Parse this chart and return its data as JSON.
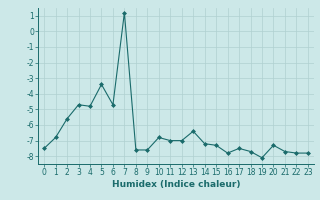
{
  "x": [
    0,
    1,
    2,
    3,
    4,
    5,
    6,
    7,
    8,
    9,
    10,
    11,
    12,
    13,
    14,
    15,
    16,
    17,
    18,
    19,
    20,
    21,
    22,
    23
  ],
  "y": [
    -7.5,
    -6.8,
    -5.6,
    -4.7,
    -4.8,
    -3.4,
    -4.7,
    1.2,
    -7.6,
    -7.6,
    -6.8,
    -7.0,
    -7.0,
    -6.4,
    -7.2,
    -7.3,
    -7.8,
    -7.5,
    -7.7,
    -8.1,
    -7.3,
    -7.7,
    -7.8,
    -7.8
  ],
  "xlabel": "Humidex (Indice chaleur)",
  "ylim": [
    -8.5,
    1.5
  ],
  "xlim": [
    -0.5,
    23.5
  ],
  "yticks": [
    1,
    0,
    -1,
    -2,
    -3,
    -4,
    -5,
    -6,
    -7,
    -8
  ],
  "xticks": [
    0,
    1,
    2,
    3,
    4,
    5,
    6,
    7,
    8,
    9,
    10,
    11,
    12,
    13,
    14,
    15,
    16,
    17,
    18,
    19,
    20,
    21,
    22,
    23
  ],
  "line_color": "#1a6b6b",
  "marker": "D",
  "marker_size": 2.0,
  "bg_color": "#cce8e8",
  "grid_color": "#b0d0d0",
  "tick_label_fontsize": 5.5,
  "xlabel_fontsize": 6.5
}
